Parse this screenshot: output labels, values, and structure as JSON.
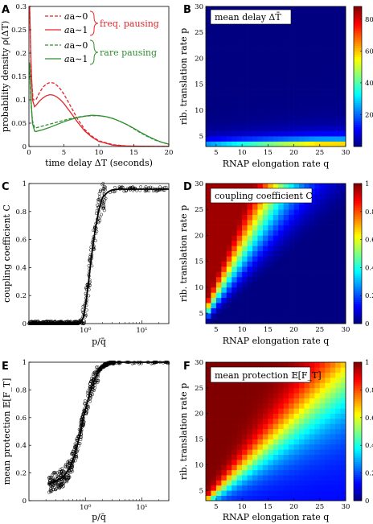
{
  "chart_data": [
    {
      "panel": "A",
      "type": "line",
      "xlabel": "time delay ΔT (seconds)",
      "ylabel": "probability density ρ(ΔT)",
      "xlim": [
        0,
        20
      ],
      "ylim": [
        0,
        0.3
      ],
      "xticks": [
        "0",
        "5",
        "10",
        "15",
        "20"
      ],
      "yticks": [
        "0",
        "0.05",
        "0.1",
        "0.15",
        "0.2",
        "0.25",
        "0.3"
      ],
      "legend_position": "top-right",
      "legend_group_labels": [
        "freq. pausing",
        "rare pausing"
      ],
      "colors": {
        "freq": "#e3262b",
        "rare": "#2f8f2f"
      },
      "series": [
        {
          "name": "a∼0",
          "group": "freq. pausing",
          "style": "dashed",
          "x": [
            0.1,
            0.3,
            0.6,
            1,
            1.5,
            2,
            2.5,
            3,
            3.5,
            4,
            4.5,
            5,
            5.5,
            6,
            7,
            8,
            9,
            10,
            12,
            14,
            16,
            18,
            20
          ],
          "y": [
            0.3,
            0.16,
            0.1,
            0.1,
            0.115,
            0.127,
            0.134,
            0.137,
            0.136,
            0.131,
            0.123,
            0.112,
            0.099,
            0.085,
            0.058,
            0.036,
            0.022,
            0.012,
            0.004,
            0.001,
            0.0005,
            0.0002,
            0.0001
          ]
        },
        {
          "name": "a∼1",
          "group": "freq. pausing",
          "style": "solid",
          "x": [
            0.1,
            0.3,
            0.5,
            0.8,
            1,
            1.5,
            2,
            2.5,
            3,
            3.5,
            4,
            4.5,
            5,
            5.5,
            6,
            7,
            8,
            9,
            10,
            12,
            14,
            16,
            18,
            20
          ],
          "y": [
            0.3,
            0.18,
            0.1,
            0.085,
            0.088,
            0.097,
            0.104,
            0.109,
            0.111,
            0.11,
            0.106,
            0.1,
            0.092,
            0.082,
            0.072,
            0.051,
            0.033,
            0.02,
            0.011,
            0.003,
            0.001,
            0.0005,
            0.0002,
            0.0001
          ]
        },
        {
          "name": "a∼0",
          "group": "rare pausing",
          "style": "dashed",
          "x": [
            0.1,
            0.3,
            0.5,
            0.8,
            1,
            2,
            3,
            4,
            5,
            6,
            7,
            8,
            9,
            10,
            11,
            12,
            13,
            14,
            15,
            16,
            17,
            18,
            19,
            20
          ],
          "y": [
            0.16,
            0.09,
            0.055,
            0.04,
            0.04,
            0.044,
            0.048,
            0.052,
            0.056,
            0.06,
            0.063,
            0.065,
            0.066,
            0.066,
            0.064,
            0.06,
            0.054,
            0.047,
            0.038,
            0.029,
            0.021,
            0.014,
            0.009,
            0.005
          ]
        },
        {
          "name": "a∼1",
          "group": "rare pausing",
          "style": "solid",
          "x": [
            0.1,
            0.3,
            0.5,
            0.8,
            1,
            2,
            3,
            4,
            5,
            6,
            7,
            8,
            9,
            10,
            11,
            12,
            13,
            14,
            15,
            16,
            17,
            18,
            19,
            20
          ],
          "y": [
            0.18,
            0.1,
            0.05,
            0.033,
            0.032,
            0.036,
            0.041,
            0.047,
            0.053,
            0.058,
            0.062,
            0.065,
            0.067,
            0.066,
            0.064,
            0.06,
            0.054,
            0.047,
            0.039,
            0.03,
            0.022,
            0.015,
            0.009,
            0.005
          ]
        }
      ]
    },
    {
      "panel": "B",
      "type": "heatmap",
      "title": "mean delay ΔT̄",
      "xlabel": "RNAP elongation rate q",
      "ylabel": "rib. translation rate p",
      "xlim": [
        3,
        30
      ],
      "ylim": [
        3,
        30
      ],
      "xticks": [
        "5",
        "10",
        "15",
        "20",
        "25",
        "30"
      ],
      "yticks": [
        "5",
        "10",
        "15",
        "20",
        "25",
        "30"
      ],
      "colorbar_ticks": [
        "20",
        "40",
        "60",
        "80"
      ],
      "colorbar_range": [
        0,
        88
      ]
    },
    {
      "panel": "C",
      "type": "scatter",
      "xlabel": "p/q̄",
      "ylabel": "coupling coefficient C",
      "x_scale": "log",
      "xlim": [
        0.1,
        30
      ],
      "ylim": [
        0,
        1
      ],
      "xticks": [
        "10⁰",
        "10¹"
      ],
      "yticks": [
        "0",
        "0.2",
        "0.4",
        "0.6",
        "0.8",
        "1"
      ],
      "curve": {
        "x": [
          0.1,
          0.5,
          0.7,
          0.8,
          0.9,
          1.0,
          1.1,
          1.2,
          1.35,
          1.5,
          1.75,
          2.0,
          2.5,
          3,
          4,
          6,
          10,
          30
        ],
        "y": [
          0,
          0,
          0,
          0.005,
          0.03,
          0.12,
          0.25,
          0.38,
          0.55,
          0.68,
          0.82,
          0.9,
          0.94,
          0.955,
          0.96,
          0.96,
          0.96,
          0.96
        ]
      }
    },
    {
      "panel": "D",
      "type": "heatmap",
      "title": "coupling coefficient C",
      "xlabel": "RNAP elongation rate q",
      "ylabel": "rib. translation rate p",
      "xlim": [
        3,
        30
      ],
      "ylim": [
        3,
        30
      ],
      "xticks": [
        "5",
        "10",
        "15",
        "20",
        "25",
        "30"
      ],
      "yticks": [
        "5",
        "10",
        "15",
        "20",
        "25",
        "30"
      ],
      "colorbar_ticks": [
        "0",
        "0.2",
        "0.4",
        "0.6",
        "0.8",
        "1"
      ],
      "colorbar_range": [
        0,
        1
      ]
    },
    {
      "panel": "E",
      "type": "scatter",
      "xlabel": "p/q̄",
      "ylabel": "mean protection 𝔼[F_T]",
      "x_scale": "log",
      "xlim": [
        0.1,
        30
      ],
      "ylim": [
        0,
        1
      ],
      "xticks": [
        "10⁰",
        "10¹"
      ],
      "yticks": [
        "0",
        "0.2",
        "0.4",
        "0.6",
        "0.8",
        "1"
      ],
      "curve": {
        "x": [
          0.22,
          0.3,
          0.4,
          0.5,
          0.6,
          0.7,
          0.8,
          0.9,
          1.0,
          1.2,
          1.5,
          1.8,
          2.2,
          2.8,
          3.5,
          5,
          10,
          30
        ],
        "y": [
          0.12,
          0.14,
          0.17,
          0.22,
          0.29,
          0.38,
          0.48,
          0.58,
          0.66,
          0.78,
          0.89,
          0.95,
          0.98,
          0.995,
          1.0,
          1.0,
          1.0,
          1.0
        ]
      }
    },
    {
      "panel": "F",
      "type": "heatmap",
      "title": "mean protection 𝔼[F_T]",
      "xlabel": "RNAP elongation rate q",
      "ylabel": "rib. translation rate p",
      "xlim": [
        3,
        30
      ],
      "ylim": [
        3,
        30
      ],
      "xticks": [
        "5",
        "10",
        "15",
        "20",
        "25",
        "30"
      ],
      "yticks": [
        "5",
        "10",
        "15",
        "20",
        "25",
        "30"
      ],
      "colorbar_ticks": [
        "0",
        "0.2",
        "0.4",
        "0.6",
        "0.8",
        "1"
      ],
      "colorbar_range": [
        0,
        1
      ]
    }
  ]
}
